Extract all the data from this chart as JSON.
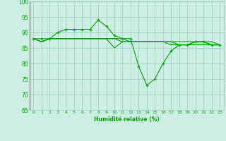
{
  "x": [
    0,
    1,
    2,
    3,
    4,
    5,
    6,
    7,
    8,
    9,
    10,
    11,
    12,
    13,
    14,
    15,
    16,
    17,
    18,
    19,
    20,
    21,
    22,
    23
  ],
  "series1": [
    88,
    88,
    88,
    90,
    91,
    91,
    91,
    91,
    94,
    92,
    89,
    88,
    88,
    79,
    73,
    75,
    80,
    84,
    86,
    86,
    87,
    87,
    86,
    86
  ],
  "series2": [
    88,
    87,
    88,
    88,
    88,
    88,
    88,
    88,
    88,
    88,
    85,
    87,
    87,
    87,
    87,
    87,
    87,
    87,
    87,
    87,
    87,
    87,
    87,
    86
  ],
  "series3": [
    88,
    87,
    88,
    88,
    88,
    88,
    88,
    88,
    88,
    88,
    88,
    87,
    87,
    87,
    87,
    87,
    87,
    86,
    86,
    86,
    87,
    87,
    86,
    86
  ],
  "series4": [
    88,
    87,
    88,
    88,
    88,
    88,
    88,
    88,
    88,
    88,
    88,
    88,
    87,
    87,
    87,
    87,
    87,
    87,
    86,
    86,
    86,
    86,
    86,
    86
  ],
  "line_color": "#00aa00",
  "marker_color": "#00bb00",
  "bg_color": "#cceee4",
  "grid_color": "#99ccbb",
  "xlabel": "Humidité relative (%)",
  "xlabel_color": "#00aa00",
  "tick_color": "#00aa00",
  "ylim": [
    65,
    100
  ],
  "yticks": [
    65,
    70,
    75,
    80,
    85,
    90,
    95,
    100
  ],
  "xlim": [
    -0.5,
    23.5
  ],
  "xticks": [
    0,
    1,
    2,
    3,
    4,
    5,
    6,
    7,
    8,
    9,
    10,
    11,
    12,
    13,
    14,
    15,
    16,
    17,
    18,
    19,
    20,
    21,
    22,
    23
  ]
}
